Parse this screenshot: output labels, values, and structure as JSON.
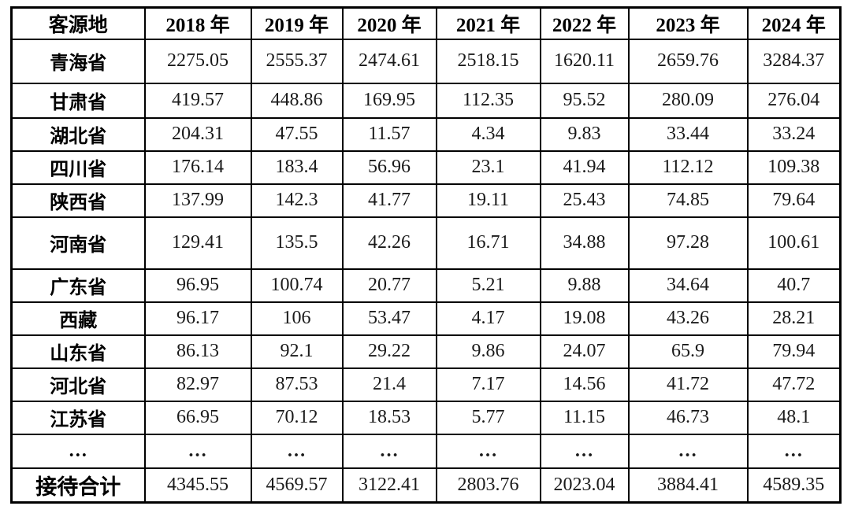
{
  "table": {
    "columns": [
      "客源地",
      "2018 年",
      "2019 年",
      "2020 年",
      "2021 年",
      "2022 年",
      "2023 年",
      "2024 年"
    ],
    "rows": [
      {
        "label": "青海省",
        "values": [
          "2275.05",
          "2555.37",
          "2474.61",
          "2518.15",
          "1620.11",
          "2659.76",
          "3284.37"
        ]
      },
      {
        "label": "甘肃省",
        "values": [
          "419.57",
          "448.86",
          "169.95",
          "112.35",
          "95.52",
          "280.09",
          "276.04"
        ]
      },
      {
        "label": "湖北省",
        "values": [
          "204.31",
          "47.55",
          "11.57",
          "4.34",
          "9.83",
          "33.44",
          "33.24"
        ]
      },
      {
        "label": "四川省",
        "values": [
          "176.14",
          "183.4",
          "56.96",
          "23.1",
          "41.94",
          "112.12",
          "109.38"
        ]
      },
      {
        "label": "陕西省",
        "values": [
          "137.99",
          "142.3",
          "41.77",
          "19.11",
          "25.43",
          "74.85",
          "79.64"
        ]
      },
      {
        "label": "河南省",
        "values": [
          "129.41",
          "135.5",
          "42.26",
          "16.71",
          "34.88",
          "97.28",
          "100.61"
        ]
      },
      {
        "label": "广东省",
        "values": [
          "96.95",
          "100.74",
          "20.77",
          "5.21",
          "9.88",
          "34.64",
          "40.7"
        ]
      },
      {
        "label": "西藏",
        "values": [
          "96.17",
          "106",
          "53.47",
          "4.17",
          "19.08",
          "43.26",
          "28.21"
        ]
      },
      {
        "label": "山东省",
        "values": [
          "86.13",
          "92.1",
          "29.22",
          "9.86",
          "24.07",
          "65.9",
          "79.94"
        ]
      },
      {
        "label": "河北省",
        "values": [
          "82.97",
          "87.53",
          "21.4",
          "7.17",
          "14.56",
          "41.72",
          "47.72"
        ]
      },
      {
        "label": "江苏省",
        "values": [
          "66.95",
          "70.12",
          "18.53",
          "5.77",
          "11.15",
          "46.73",
          "48.1"
        ]
      },
      {
        "label": "…",
        "values": [
          "…",
          "…",
          "…",
          "…",
          "…",
          "…",
          "…"
        ]
      }
    ],
    "total_row": {
      "label": "接待合计",
      "values": [
        "4345.55",
        "4569.57",
        "3122.41",
        "2803.76",
        "2023.04",
        "3884.41",
        "4589.35"
      ]
    },
    "colors": {
      "border": "#000000",
      "text": "#111111",
      "background": "#ffffff"
    }
  }
}
